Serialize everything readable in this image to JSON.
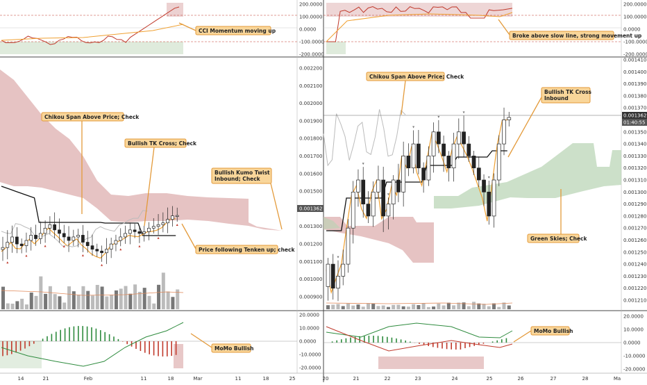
{
  "colors": {
    "cloud_bear": "#d9a3a3",
    "cloud_bull": "#b7d3b2",
    "tenkan": "#f0a030",
    "kijun": "#111111",
    "chikou": "#bbbbbb",
    "callout_fill": "#f9d69a",
    "callout_stroke": "#e39a3a",
    "cci_line": "#c0392b",
    "cci_signal": "#f0a030",
    "hist_up": "#2e8b3e",
    "hist_down": "#c0392b",
    "signal_green": "#2e8b3e",
    "volume": "#999999"
  },
  "left_panel": {
    "x_ticks": [
      "14",
      "21",
      "Feb",
      "11",
      "18",
      "Mar",
      "11",
      "18",
      "25"
    ],
    "price_ticks": [
      "0.002200",
      "0.002100",
      "0.002000",
      "0.001900",
      "0.001800",
      "0.001700",
      "0.001600",
      "0.001500",
      "0.001400",
      "0.001300",
      "0.001200",
      "0.001100",
      "0.001000",
      "0.000900"
    ],
    "price_label": "0.001362",
    "cci_ticks": [
      "200.0000",
      "100.0000",
      "0.0000",
      "-100.0000",
      "-200.0000"
    ],
    "momo_ticks": [
      "20.0000",
      "10.0000",
      "0.0000",
      "-10.0000",
      "-20.0000"
    ],
    "callouts": {
      "cci": "CCI Momentum moving up",
      "chikou": "Chikou Span Above Price; Check",
      "tk": "Bullish TK Cross; Check",
      "kumo_1": "Bullish Kumo Twist",
      "kumo_2": "Inbound; Check",
      "tenkan": "Price following Tenken up; check",
      "momo": "MoMo Bullish"
    }
  },
  "right_panel": {
    "x_ticks": [
      "20",
      "21",
      "22",
      "23",
      "24",
      "25",
      "26",
      "27",
      "28",
      "Ma"
    ],
    "price_ticks": [
      "0.001410",
      "0.001400",
      "0.001390",
      "0.001380",
      "0.001370",
      "0.001360",
      "0.001350",
      "0.001340",
      "0.001330",
      "0.001320",
      "0.001310",
      "0.001300",
      "0.001290",
      "0.001280",
      "0.001270",
      "0.001260",
      "0.001250",
      "0.001240",
      "0.001230",
      "0.001220",
      "0.001210"
    ],
    "price_label": "0.001362",
    "timer_label": "01:40:55",
    "cci_ticks": [
      "200.0000",
      "100.0000",
      "0.0000",
      "-100.0000",
      "-200.0000"
    ],
    "momo_ticks": [
      "20.0000",
      "10.0000",
      "0.0000",
      "-10.0000",
      "-20.0000"
    ],
    "callouts": {
      "cci": "Broke above slow line, strong movement up",
      "chikou": "Chikou Span Above Price; Check",
      "tk_1": "Bullish TK Cross",
      "tk_2": "Inbound",
      "skies": "Green Skies; Check",
      "momo": "MoMo Bullish"
    }
  },
  "chart_data": [
    {
      "type": "candlestick",
      "timeframe_note": "daily",
      "x_range": [
        "Jan 10",
        "Mar 27"
      ],
      "y_range": [
        0.00085,
        0.00225
      ],
      "last_price": 0.001362,
      "close": [
        0.00118,
        0.00121,
        0.00124,
        0.0012,
        0.00119,
        0.00122,
        0.00125,
        0.00123,
        0.00126,
        0.00129,
        0.00131,
        0.00128,
        0.00126,
        0.00124,
        0.00122,
        0.00124,
        0.00125,
        0.00121,
        0.00119,
        0.00117,
        0.00116,
        0.00115,
        0.00117,
        0.0012,
        0.00122,
        0.00124,
        0.00126,
        0.00128,
        0.00127,
        0.00126,
        0.00127,
        0.00129,
        0.0013,
        0.00131,
        0.00132,
        0.00134,
        0.00136,
        0.001362
      ]
    },
    {
      "type": "candlestick",
      "timeframe_note": "intraday",
      "x_range": [
        "20",
        "Mar"
      ],
      "y_range": [
        0.001205,
        0.001415
      ],
      "last_price": 0.001362,
      "close": [
        0.00124,
        0.00122,
        0.00123,
        0.00124,
        0.00127,
        0.0013,
        0.00131,
        0.00129,
        0.00128,
        0.0013,
        0.00131,
        0.00128,
        0.00129,
        0.00131,
        0.0013,
        0.00133,
        0.00132,
        0.00134,
        0.00132,
        0.00131,
        0.00133,
        0.00135,
        0.00134,
        0.00133,
        0.00132,
        0.00134,
        0.00135,
        0.00134,
        0.00133,
        0.00132,
        0.00131,
        0.0013,
        0.00128,
        0.00131,
        0.00134,
        0.00136,
        0.001362
      ]
    }
  ]
}
